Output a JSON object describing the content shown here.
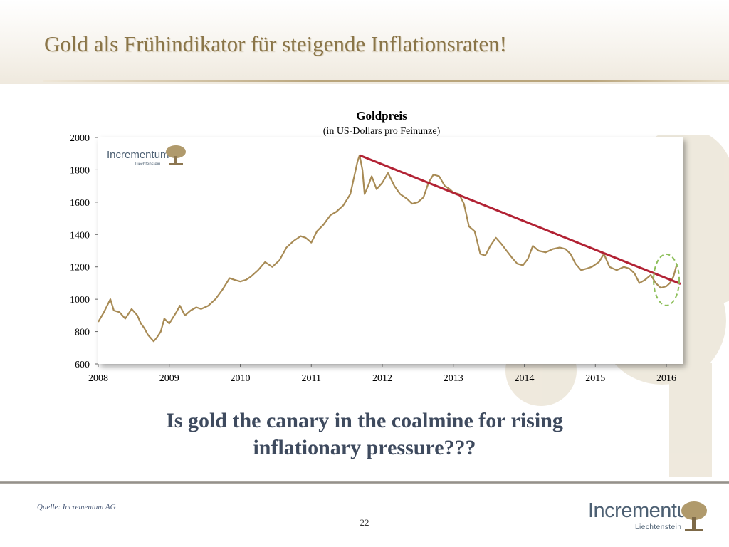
{
  "slide": {
    "title": "Gold als Frühindikator für steigende Inflationsraten!",
    "headline_line1": "Is gold the canary in the coalmine for rising",
    "headline_line2": "inflationary pressure???",
    "source": "Quelle: Incrementum AG",
    "page_number": "22"
  },
  "logo": {
    "name": "Incrementum",
    "subtitle": "Liechtenstein",
    "icon": "tree-icon"
  },
  "colors": {
    "title": "#8a7548",
    "gold_line": "#a88b55",
    "trend_line": "#b22234",
    "highlight_circle": "#8dbf5a",
    "headline": "#3e4a5e",
    "logo_text": "#4d6073"
  },
  "chart_data": {
    "type": "line",
    "title": "Goldpreis",
    "subtitle": "(in US-Dollars pro Feinunze)",
    "xlabel": "",
    "ylabel": "",
    "xlim": [
      2008,
      2016.2
    ],
    "ylim": [
      600,
      2000
    ],
    "x_ticks": [
      "2008",
      "2009",
      "2010",
      "2011",
      "2012",
      "2013",
      "2014",
      "2015",
      "2016"
    ],
    "y_ticks": [
      "600",
      "800",
      "1000",
      "1200",
      "1400",
      "1600",
      "1800",
      "2000"
    ],
    "grid": false,
    "series": [
      {
        "name": "Goldpreis",
        "x": [
          2008.0,
          2008.08,
          2008.17,
          2008.22,
          2008.3,
          2008.38,
          2008.47,
          2008.55,
          2008.6,
          2008.65,
          2008.7,
          2008.78,
          2008.82,
          2008.88,
          2008.93,
          2009.0,
          2009.1,
          2009.15,
          2009.22,
          2009.3,
          2009.38,
          2009.45,
          2009.55,
          2009.65,
          2009.75,
          2009.85,
          2009.92,
          2010.0,
          2010.08,
          2010.15,
          2010.25,
          2010.35,
          2010.45,
          2010.55,
          2010.65,
          2010.75,
          2010.85,
          2010.92,
          2011.0,
          2011.08,
          2011.17,
          2011.27,
          2011.35,
          2011.45,
          2011.55,
          2011.6,
          2011.65,
          2011.68,
          2011.72,
          2011.75,
          2011.8,
          2011.85,
          2011.92,
          2012.0,
          2012.08,
          2012.17,
          2012.25,
          2012.35,
          2012.42,
          2012.5,
          2012.58,
          2012.65,
          2012.72,
          2012.8,
          2012.88,
          2012.95,
          2013.0,
          2013.08,
          2013.15,
          2013.22,
          2013.3,
          2013.38,
          2013.45,
          2013.52,
          2013.6,
          2013.68,
          2013.75,
          2013.82,
          2013.9,
          2013.98,
          2014.05,
          2014.12,
          2014.2,
          2014.3,
          2014.4,
          2014.5,
          2014.58,
          2014.65,
          2014.72,
          2014.8,
          2014.88,
          2014.95,
          2015.05,
          2015.12,
          2015.2,
          2015.3,
          2015.4,
          2015.48,
          2015.55,
          2015.62,
          2015.7,
          2015.78,
          2015.85,
          2015.92,
          2016.0,
          2016.05,
          2016.1,
          2016.15
        ],
        "values": [
          860,
          920,
          1000,
          930,
          920,
          880,
          940,
          900,
          850,
          820,
          780,
          740,
          760,
          800,
          880,
          850,
          920,
          960,
          900,
          930,
          950,
          940,
          960,
          1000,
          1060,
          1130,
          1120,
          1110,
          1120,
          1140,
          1180,
          1230,
          1200,
          1240,
          1320,
          1360,
          1390,
          1380,
          1350,
          1420,
          1460,
          1520,
          1540,
          1580,
          1650,
          1750,
          1850,
          1890,
          1800,
          1650,
          1700,
          1760,
          1680,
          1720,
          1780,
          1700,
          1650,
          1620,
          1590,
          1600,
          1630,
          1720,
          1770,
          1760,
          1700,
          1680,
          1660,
          1650,
          1590,
          1450,
          1420,
          1280,
          1270,
          1330,
          1380,
          1340,
          1300,
          1260,
          1220,
          1210,
          1250,
          1330,
          1300,
          1290,
          1310,
          1320,
          1310,
          1280,
          1220,
          1180,
          1190,
          1200,
          1230,
          1280,
          1200,
          1180,
          1200,
          1190,
          1160,
          1100,
          1120,
          1150,
          1100,
          1070,
          1080,
          1100,
          1140,
          1220
        ]
      },
      {
        "name": "Trend",
        "x": [
          2011.68,
          2016.2
        ],
        "values": [
          1890,
          1095
        ]
      }
    ],
    "annotations": [
      {
        "type": "dashed-ellipse",
        "label": "",
        "x": 2016.0,
        "y": 1120
      }
    ]
  }
}
